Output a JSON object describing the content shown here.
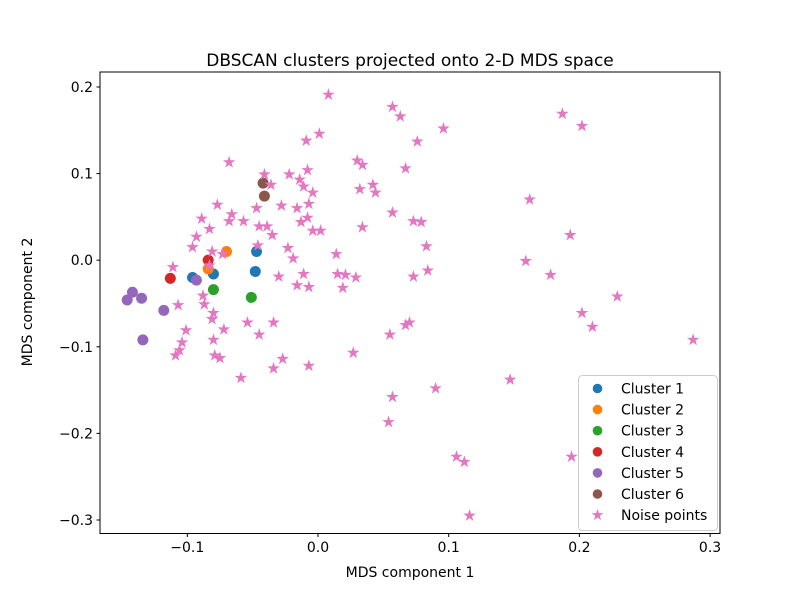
{
  "figure": {
    "background": "#ffffff",
    "axes_edge_color": "#000000",
    "legend_border_color": "#cccccc"
  },
  "chart_data": {
    "type": "scatter",
    "title": "DBSCAN clusters projected onto 2-D MDS space",
    "xlabel": "MDS component 1",
    "ylabel": "MDS component 2",
    "xlim": [
      -0.1668,
      0.3076
    ],
    "ylim": [
      -0.3156,
      0.2173
    ],
    "xticks": [
      -0.1,
      0.0,
      0.1,
      0.2,
      0.3
    ],
    "yticks": [
      -0.3,
      -0.2,
      -0.1,
      0.0,
      0.1,
      0.2
    ],
    "grid": false,
    "legend_position": "lower right",
    "series": [
      {
        "name": "Cluster 1",
        "marker": "circle",
        "color": "#1f77b4",
        "points": [
          [
            -0.096,
            -0.02
          ],
          [
            -0.08,
            -0.016
          ],
          [
            -0.047,
            0.01
          ],
          [
            -0.048,
            -0.013
          ]
        ]
      },
      {
        "name": "Cluster 2",
        "marker": "circle",
        "color": "#ff7f0e",
        "points": [
          [
            -0.07,
            0.01
          ],
          [
            -0.084,
            -0.01
          ]
        ]
      },
      {
        "name": "Cluster 3",
        "marker": "circle",
        "color": "#2ca02c",
        "points": [
          [
            -0.08,
            -0.034
          ],
          [
            -0.051,
            -0.043
          ]
        ]
      },
      {
        "name": "Cluster 4",
        "marker": "circle",
        "color": "#d62728",
        "points": [
          [
            -0.084,
            0.0
          ],
          [
            -0.113,
            -0.021
          ]
        ]
      },
      {
        "name": "Cluster 5",
        "marker": "circle",
        "color": "#9467bd",
        "points": [
          [
            -0.093,
            -0.023
          ],
          [
            -0.142,
            -0.037
          ],
          [
            -0.146,
            -0.046
          ],
          [
            -0.135,
            -0.044
          ],
          [
            -0.118,
            -0.058
          ],
          [
            -0.134,
            -0.092
          ]
        ]
      },
      {
        "name": "Cluster 6",
        "marker": "circle",
        "color": "#8c564b",
        "points": [
          [
            -0.042,
            0.089
          ],
          [
            -0.041,
            0.074
          ]
        ]
      },
      {
        "name": "Noise points",
        "marker": "star",
        "color": "#e377c2",
        "points": [
          [
            -0.068,
            0.113
          ],
          [
            -0.041,
            0.099
          ],
          [
            -0.036,
            0.087
          ],
          [
            -0.022,
            0.099
          ],
          [
            -0.014,
            0.093
          ],
          [
            -0.011,
            0.085
          ],
          [
            -0.008,
            0.104
          ],
          [
            -0.009,
            0.138
          ],
          [
            -0.077,
            0.064
          ],
          [
            -0.047,
            0.06
          ],
          [
            -0.028,
            0.063
          ],
          [
            -0.016,
            0.06
          ],
          [
            -0.007,
            0.065
          ],
          [
            -0.089,
            0.048
          ],
          [
            -0.066,
            0.053
          ],
          [
            -0.068,
            0.045
          ],
          [
            -0.057,
            0.045
          ],
          [
            -0.008,
            0.049
          ],
          [
            -0.004,
            0.078
          ],
          [
            -0.013,
            0.044
          ],
          [
            -0.045,
            0.039
          ],
          [
            -0.039,
            0.039
          ],
          [
            -0.035,
            0.029
          ],
          [
            -0.004,
            0.034
          ],
          [
            0.002,
            0.034
          ],
          [
            -0.023,
            0.014
          ],
          [
            0.034,
            0.038
          ],
          [
            -0.083,
            0.036
          ],
          [
            -0.093,
            0.027
          ],
          [
            -0.096,
            0.015
          ],
          [
            -0.081,
            0.01
          ],
          [
            -0.073,
            0.007
          ],
          [
            -0.083,
            -0.006
          ],
          [
            -0.111,
            -0.008
          ],
          [
            -0.046,
            0.017
          ],
          [
            0.008,
            0.191
          ],
          [
            0.057,
            0.177
          ],
          [
            0.063,
            0.166
          ],
          [
            0.096,
            0.152
          ],
          [
            0.001,
            0.146
          ],
          [
            0.076,
            0.137
          ],
          [
            0.03,
            0.115
          ],
          [
            0.034,
            0.11
          ],
          [
            0.067,
            0.106
          ],
          [
            0.042,
            0.087
          ],
          [
            0.044,
            0.078
          ],
          [
            0.032,
            0.082
          ],
          [
            0.057,
            0.055
          ],
          [
            0.073,
            0.045
          ],
          [
            0.079,
            0.044
          ],
          [
            0.187,
            0.169
          ],
          [
            0.202,
            0.155
          ],
          [
            0.162,
            0.07
          ],
          [
            -0.019,
            0.002
          ],
          [
            -0.011,
            -0.016
          ],
          [
            -0.03,
            -0.019
          ],
          [
            -0.016,
            -0.029
          ],
          [
            -0.007,
            -0.031
          ],
          [
            0.014,
            0.007
          ],
          [
            0.083,
            0.016
          ],
          [
            0.084,
            -0.012
          ],
          [
            0.073,
            -0.019
          ],
          [
            0.015,
            -0.016
          ],
          [
            0.021,
            -0.017
          ],
          [
            0.029,
            -0.02
          ],
          [
            0.019,
            -0.032
          ],
          [
            -0.088,
            -0.041
          ],
          [
            -0.087,
            -0.051
          ],
          [
            -0.107,
            -0.052
          ],
          [
            -0.08,
            -0.061
          ],
          [
            -0.081,
            -0.068
          ],
          [
            -0.101,
            -0.081
          ],
          [
            -0.104,
            -0.095
          ],
          [
            -0.106,
            -0.104
          ],
          [
            -0.109,
            -0.11
          ],
          [
            -0.08,
            -0.092
          ],
          [
            -0.079,
            -0.11
          ],
          [
            -0.075,
            -0.113
          ],
          [
            -0.072,
            -0.08
          ],
          [
            -0.054,
            -0.072
          ],
          [
            -0.034,
            -0.072
          ],
          [
            -0.045,
            -0.086
          ],
          [
            -0.027,
            -0.114
          ],
          [
            -0.034,
            -0.125
          ],
          [
            -0.007,
            -0.122
          ],
          [
            0.067,
            -0.075
          ],
          [
            0.07,
            -0.072
          ],
          [
            0.055,
            -0.086
          ],
          [
            0.027,
            -0.107
          ],
          [
            0.193,
            0.029
          ],
          [
            0.159,
            -0.001
          ],
          [
            0.178,
            -0.017
          ],
          [
            0.229,
            -0.042
          ],
          [
            0.202,
            -0.061
          ],
          [
            0.21,
            -0.077
          ],
          [
            0.287,
            -0.092
          ],
          [
            -0.059,
            -0.136
          ],
          [
            0.057,
            -0.158
          ],
          [
            0.09,
            -0.148
          ],
          [
            0.147,
            -0.138
          ],
          [
            0.054,
            -0.187
          ],
          [
            0.106,
            -0.227
          ],
          [
            0.112,
            -0.233
          ],
          [
            0.116,
            -0.295
          ],
          [
            0.194,
            -0.227
          ]
        ]
      }
    ]
  }
}
